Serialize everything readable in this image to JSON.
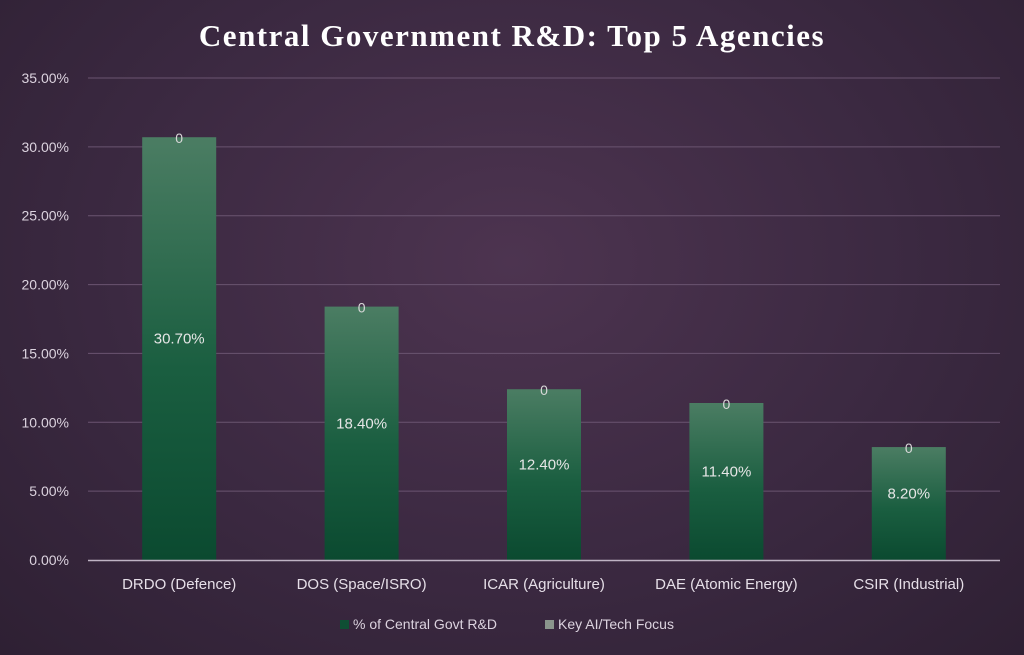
{
  "chart_data": {
    "type": "bar",
    "title": "Central Government R&D: Top 5 Agencies",
    "categories": [
      "DRDO (Defence)",
      "DOS (Space/ISRO)",
      "ICAR (Agriculture)",
      "DAE (Atomic Energy)",
      "CSIR (Industrial)"
    ],
    "series": [
      {
        "name": "% of Central Govt R&D",
        "values": [
          30.7,
          18.4,
          12.4,
          11.4,
          8.2
        ],
        "labels": [
          "30.70%",
          "18.40%",
          "12.40%",
          "11.40%",
          "8.20%"
        ],
        "color": "#0f5a3c"
      },
      {
        "name": "Key AI/Tech Focus",
        "values": [
          0,
          0,
          0,
          0,
          0
        ],
        "labels": [
          "0",
          "0",
          "0",
          "0",
          "0"
        ],
        "color": "#7f8f83"
      }
    ],
    "stacked": true,
    "ylim": [
      0,
      35
    ],
    "yticks": [
      0,
      5,
      10,
      15,
      20,
      25,
      30,
      35
    ],
    "ytick_labels": [
      "0.00%",
      "5.00%",
      "10.00%",
      "15.00%",
      "20.00%",
      "25.00%",
      "30.00%",
      "35.00%"
    ],
    "xlabel": "",
    "ylabel": "",
    "grid": true,
    "legend_position": "bottom"
  }
}
